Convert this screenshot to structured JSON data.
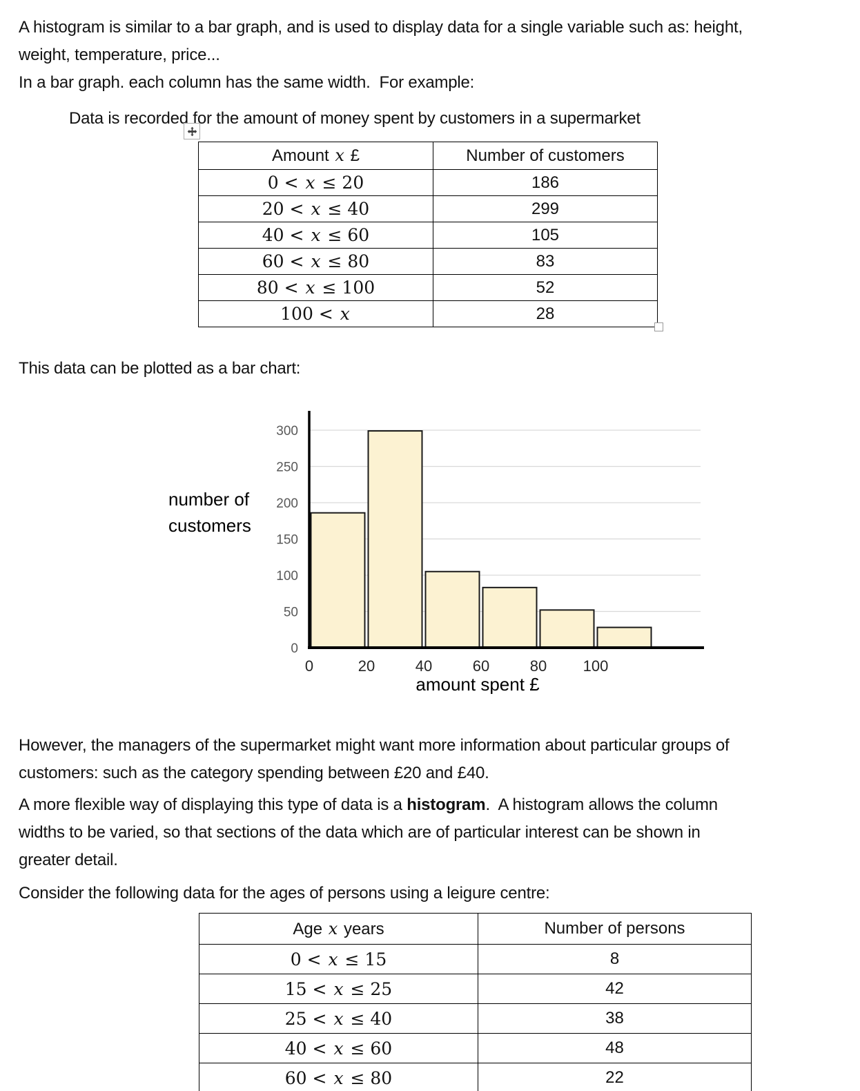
{
  "paragraphs": {
    "intro_line1": "A histogram is similar to a bar graph, and is used to display data for a single variable such as: height,",
    "intro_line2": "weight, temperature, price...",
    "bar_graph": "In a bar graph. each column has the same width.  For example:",
    "data_recorded": "Data is recorded for the amount of money spent by customers in a supermarket",
    "plot_note": "This data can be plotted as a bar chart:",
    "however_line1": "However, the managers of the supermarket might want more information about particular groups of",
    "however_line2": "customers: such as the category spending between £20 and £40.",
    "flexible_line1_pre": "A more flexible way of displaying this type of data is a ",
    "flexible_line1_bold": "histogram",
    "flexible_line1_post": ".  A histogram allows the column",
    "flexible_line2": "widths to be varied, so that sections of the data which are of particular interest can be shown in",
    "flexible_line3": "greater detail.",
    "consider": "Consider the following data for the ages of persons using a leigure centre:"
  },
  "table1": {
    "header_range": {
      "pre": "Amount ",
      "var": "x",
      "post": " £"
    },
    "header_value": "Number of customers",
    "rows": [
      {
        "pre": "0 < ",
        "var": "x",
        "post": " ≤ 20",
        "value": "186"
      },
      {
        "pre": "20 < ",
        "var": "x",
        "post": " ≤ 40",
        "value": "299"
      },
      {
        "pre": "40 < ",
        "var": "x",
        "post": " ≤ 60",
        "value": "105"
      },
      {
        "pre": "60 < ",
        "var": "x",
        "post": " ≤ 80",
        "value": "83"
      },
      {
        "pre": "80 < ",
        "var": "x",
        "post": " ≤ 100",
        "value": "52"
      },
      {
        "pre": "100 < ",
        "var": "x",
        "post": "",
        "value": "28"
      }
    ]
  },
  "table2": {
    "header_range": {
      "pre": "Age ",
      "var": "x",
      "post": " years"
    },
    "header_value": "Number of persons",
    "rows": [
      {
        "pre": "0 < ",
        "var": "x",
        "post": " ≤ 15",
        "value": "8"
      },
      {
        "pre": "15 < ",
        "var": "x",
        "post": " ≤ 25",
        "value": "42"
      },
      {
        "pre": "25 < ",
        "var": "x",
        "post": " ≤ 40",
        "value": "38"
      },
      {
        "pre": "40 < ",
        "var": "x",
        "post": " ≤ 60",
        "value": "48"
      },
      {
        "pre": "60 < ",
        "var": "x",
        "post": " ≤ 80",
        "value": "22"
      }
    ]
  },
  "chart_data": {
    "type": "bar",
    "title": "",
    "ylabel_lines": [
      "number of",
      "customers"
    ],
    "xlabel": "amount spent £",
    "bins": [
      [
        0,
        20
      ],
      [
        20,
        40
      ],
      [
        40,
        60
      ],
      [
        60,
        80
      ],
      [
        80,
        100
      ],
      [
        100,
        120
      ]
    ],
    "x_tick_labels": [
      "0",
      "20",
      "40",
      "60",
      "80",
      "100"
    ],
    "values": [
      186,
      299,
      105,
      83,
      52,
      28
    ],
    "y_ticks": [
      0,
      50,
      100,
      150,
      200,
      250,
      300
    ],
    "ylim": [
      0,
      320
    ],
    "grid": true,
    "legend": "none",
    "bar_fill": "#fcf2d2",
    "bar_border": "#1a1a1a",
    "grid_color": "#d9d9d9",
    "axis_color": "#000000",
    "y_tick_color": "#595959",
    "x_tick_color": "#262626"
  }
}
